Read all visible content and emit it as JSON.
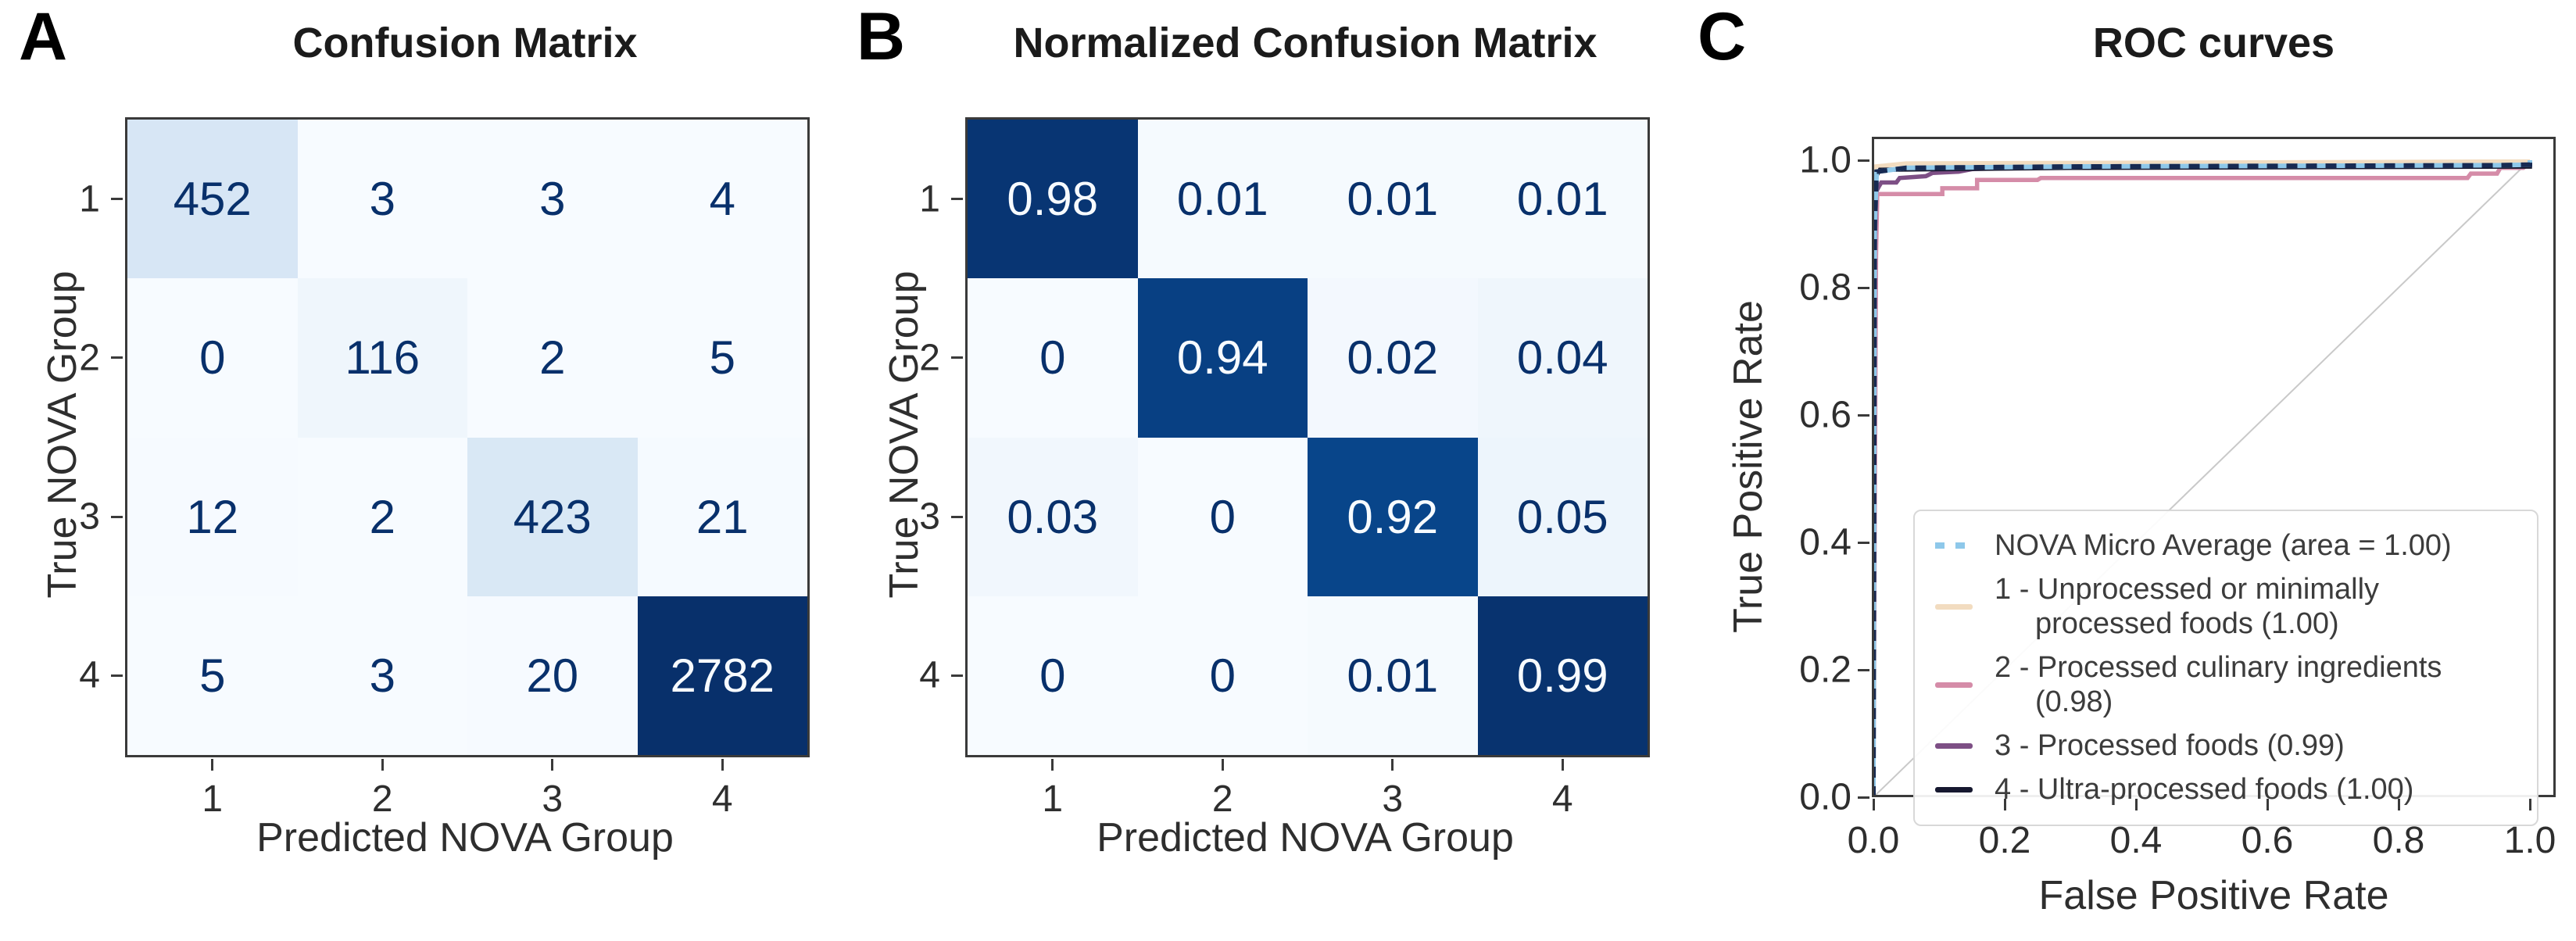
{
  "panels": {
    "a": "A",
    "b": "B",
    "c": "C"
  },
  "colors": {
    "axis": "#3a3a3a",
    "heatmap_low": "#f7fbff",
    "heatmap_high": "#08306b",
    "diagonal_reference": "#c9c9c9",
    "micro_dash_overlay": "#172a52"
  },
  "chart_data": [
    {
      "id": "confusion_matrix",
      "type": "heatmap",
      "title": "Confusion Matrix",
      "xlabel": "Predicted NOVA Group",
      "ylabel": "True NOVA Group",
      "xticklabels": [
        "1",
        "2",
        "3",
        "4"
      ],
      "yticklabels": [
        "1",
        "2",
        "3",
        "4"
      ],
      "values": [
        [
          452,
          3,
          3,
          4
        ],
        [
          0,
          116,
          2,
          5
        ],
        [
          12,
          2,
          423,
          21
        ],
        [
          5,
          3,
          20,
          2782
        ]
      ],
      "value_labels": [
        [
          "452",
          "3",
          "3",
          "4"
        ],
        [
          "0",
          "116",
          "2",
          "5"
        ],
        [
          "12",
          "2",
          "423",
          "21"
        ],
        [
          "5",
          "3",
          "20",
          "2782"
        ]
      ],
      "colormap": "Blues",
      "normalization_max": 2782
    },
    {
      "id": "normalized_confusion_matrix",
      "type": "heatmap",
      "title": "Normalized Confusion Matrix",
      "xlabel": "Predicted NOVA Group",
      "ylabel": "True NOVA Group",
      "xticklabels": [
        "1",
        "2",
        "3",
        "4"
      ],
      "yticklabels": [
        "1",
        "2",
        "3",
        "4"
      ],
      "values": [
        [
          0.98,
          0.01,
          0.01,
          0.01
        ],
        [
          0,
          0.94,
          0.02,
          0.04
        ],
        [
          0.03,
          0,
          0.92,
          0.05
        ],
        [
          0,
          0,
          0.01,
          0.99
        ]
      ],
      "value_labels": [
        [
          "0.98",
          "0.01",
          "0.01",
          "0.01"
        ],
        [
          "0",
          "0.94",
          "0.02",
          "0.04"
        ],
        [
          "0.03",
          "0",
          "0.92",
          "0.05"
        ],
        [
          "0",
          "0",
          "0.01",
          "0.99"
        ]
      ],
      "colormap": "Blues",
      "normalization_max": 1
    },
    {
      "id": "roc_curves",
      "type": "line",
      "title": "ROC curves",
      "xlabel": "False Positive Rate",
      "ylabel": "True Positive Rate",
      "xlim": [
        0.0,
        1.0
      ],
      "ylim": [
        0.0,
        1.0
      ],
      "xtick_values": [
        0,
        0.2,
        0.4,
        0.6,
        0.8,
        1.0
      ],
      "xtick_labels": [
        "0.0",
        "0.2",
        "0.4",
        "0.6",
        "0.8",
        "1.0"
      ],
      "ytick_values": [
        0,
        0.2,
        0.4,
        0.6,
        0.8,
        1.0
      ],
      "ytick_labels": [
        "0.0",
        "0.2",
        "0.4",
        "0.6",
        "0.8",
        "1.0"
      ],
      "grid": false,
      "legend_position": "lower right",
      "diagonal_reference_line": [
        [
          0,
          0
        ],
        [
          1,
          1
        ]
      ],
      "series": [
        {
          "name": "NOVA Micro Average (area = 1.00)",
          "auc": "1.00",
          "color": "#8ec8ea",
          "style": "dotted",
          "points": [
            [
              0,
              0
            ],
            [
              0.002,
              0.9
            ],
            [
              0.005,
              0.982
            ],
            [
              0.05,
              0.988
            ],
            [
              0.3,
              0.99
            ],
            [
              0.95,
              0.992
            ],
            [
              1,
              0.993
            ],
            [
              1,
              1
            ]
          ]
        },
        {
          "name": "1 - Unprocessed or minimally processed foods (1.00)",
          "auc": "1.00",
          "color": "#f2dcc0",
          "style": "solid",
          "points": [
            [
              0,
              0
            ],
            [
              0.001,
              0.92
            ],
            [
              0.002,
              0.99
            ],
            [
              0.05,
              0.995
            ],
            [
              1,
              0.998
            ],
            [
              1,
              1
            ]
          ]
        },
        {
          "name": "2 - Processed culinary ingredients (0.98)",
          "auc": "0.98",
          "color": "#d58ca8",
          "style": "solid",
          "points": [
            [
              0,
              0
            ],
            [
              0.004,
              0.85
            ],
            [
              0.006,
              0.947
            ],
            [
              0.105,
              0.947
            ],
            [
              0.105,
              0.956
            ],
            [
              0.158,
              0.956
            ],
            [
              0.158,
              0.969
            ],
            [
              0.25,
              0.969
            ],
            [
              0.255,
              0.972
            ],
            [
              0.905,
              0.972
            ],
            [
              0.91,
              0.979
            ],
            [
              0.95,
              0.979
            ],
            [
              0.955,
              0.988
            ],
            [
              0.99,
              0.988
            ],
            [
              1,
              0.995
            ],
            [
              1,
              1
            ]
          ]
        },
        {
          "name": "3 - Processed foods (0.99)",
          "auc": "0.99",
          "color": "#7d4f85",
          "style": "solid",
          "points": [
            [
              0,
              0
            ],
            [
              0.002,
              0.86
            ],
            [
              0.004,
              0.95
            ],
            [
              0.008,
              0.958
            ],
            [
              0.012,
              0.965
            ],
            [
              0.035,
              0.965
            ],
            [
              0.04,
              0.972
            ],
            [
              0.08,
              0.975
            ],
            [
              0.09,
              0.98
            ],
            [
              0.13,
              0.982
            ],
            [
              0.15,
              0.986
            ],
            [
              0.2,
              0.988
            ],
            [
              0.3,
              0.99
            ],
            [
              1,
              0.992
            ],
            [
              1,
              1
            ]
          ]
        },
        {
          "name": "4 - Ultra-processed foods (1.00)",
          "auc": "1.00",
          "color": "#16182f",
          "style": "solid",
          "points": [
            [
              0,
              0
            ],
            [
              0.002,
              0.88
            ],
            [
              0.004,
              0.975
            ],
            [
              0.01,
              0.985
            ],
            [
              0.3,
              0.988
            ],
            [
              1,
              0.99
            ],
            [
              1,
              1
            ]
          ]
        }
      ]
    }
  ]
}
